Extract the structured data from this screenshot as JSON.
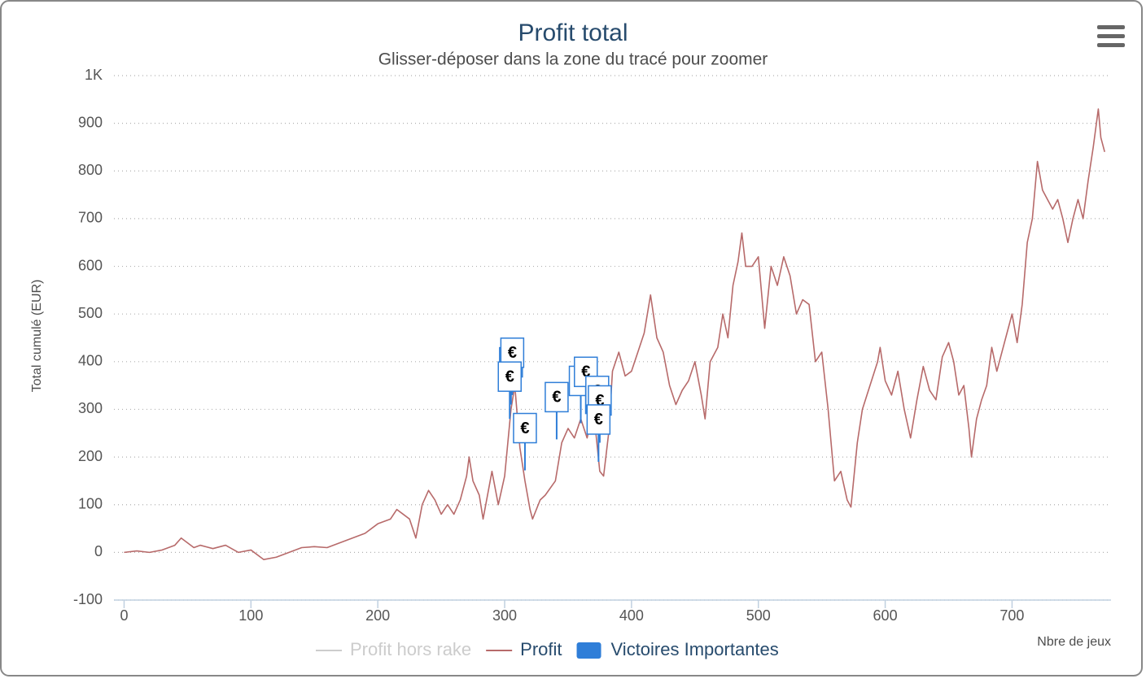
{
  "chart_data": {
    "type": "line",
    "title": "Profit total",
    "subtitle": "Glisser-déposer dans la zone du tracé pour zoomer",
    "x_label": "Nbre de jeux",
    "y_label": "Total cumulé (EUR)",
    "xlim": [
      -8,
      778
    ],
    "ylim": [
      -100,
      1000
    ],
    "xticks": [
      0,
      100,
      200,
      300,
      400,
      500,
      600,
      700
    ],
    "yticks": [
      -100,
      0,
      100,
      200,
      300,
      400,
      500,
      600,
      700,
      800,
      900,
      {
        "value": 1000,
        "label": "1K"
      }
    ],
    "grid": true,
    "legend": "bottom",
    "series": [
      {
        "name": "Profit hors rake",
        "color": "#cccccc",
        "visible": false
      },
      {
        "name": "Profit",
        "color": "#b76a6a",
        "x": [
          0,
          10,
          20,
          30,
          40,
          45,
          50,
          55,
          60,
          70,
          80,
          90,
          100,
          110,
          120,
          130,
          140,
          150,
          160,
          170,
          180,
          190,
          200,
          210,
          215,
          220,
          225,
          230,
          235,
          240,
          245,
          250,
          255,
          260,
          265,
          270,
          272,
          275,
          280,
          283,
          290,
          295,
          300,
          305,
          308,
          312,
          316,
          320,
          322,
          328,
          332,
          340,
          345,
          350,
          355,
          360,
          365,
          370,
          375,
          378,
          382,
          385,
          390,
          395,
          400,
          405,
          410,
          415,
          420,
          425,
          430,
          435,
          440,
          445,
          450,
          455,
          458,
          462,
          468,
          472,
          476,
          480,
          484,
          487,
          490,
          495,
          500,
          505,
          510,
          515,
          520,
          525,
          530,
          535,
          540,
          545,
          550,
          555,
          560,
          565,
          570,
          573,
          578,
          582,
          588,
          594,
          596,
          600,
          605,
          610,
          615,
          620,
          625,
          630,
          635,
          640,
          645,
          650,
          654,
          658,
          662,
          666,
          668,
          672,
          676,
          680,
          684,
          688,
          692,
          696,
          700,
          704,
          708,
          712,
          716,
          720,
          724,
          728,
          732,
          736,
          740,
          744,
          748,
          752,
          756,
          760,
          764,
          768,
          770,
          773
        ],
        "values": [
          0,
          3,
          0,
          5,
          15,
          30,
          20,
          10,
          15,
          8,
          15,
          0,
          5,
          -15,
          -10,
          0,
          10,
          12,
          10,
          20,
          30,
          40,
          60,
          70,
          90,
          80,
          70,
          30,
          100,
          130,
          110,
          80,
          100,
          80,
          110,
          160,
          200,
          150,
          120,
          70,
          170,
          100,
          160,
          300,
          350,
          220,
          150,
          90,
          70,
          110,
          120,
          150,
          230,
          260,
          240,
          280,
          240,
          300,
          170,
          160,
          250,
          380,
          420,
          370,
          380,
          420,
          460,
          540,
          450,
          420,
          350,
          310,
          340,
          360,
          400,
          330,
          280,
          400,
          430,
          500,
          450,
          560,
          610,
          670,
          600,
          600,
          620,
          470,
          600,
          560,
          620,
          580,
          500,
          530,
          520,
          400,
          420,
          300,
          150,
          170,
          110,
          95,
          230,
          300,
          350,
          400,
          430,
          360,
          330,
          380,
          300,
          240,
          320,
          390,
          340,
          320,
          410,
          440,
          400,
          330,
          350,
          260,
          200,
          280,
          320,
          350,
          430,
          380,
          420,
          460,
          500,
          440,
          520,
          650,
          700,
          820,
          760,
          740,
          720,
          740,
          700,
          650,
          700,
          740,
          700,
          780,
          850,
          930,
          870,
          840
        ]
      },
      {
        "name": "Victoires Importantes",
        "color": "#2f7ed8",
        "flag_text": "€",
        "x": [
          305,
          306,
          304,
          316,
          341,
          360,
          364,
          373,
          375,
          374
        ],
        "values": [
          310,
          330,
          280,
          172,
          237,
          271,
          290,
          250,
          230,
          190
        ]
      }
    ]
  }
}
